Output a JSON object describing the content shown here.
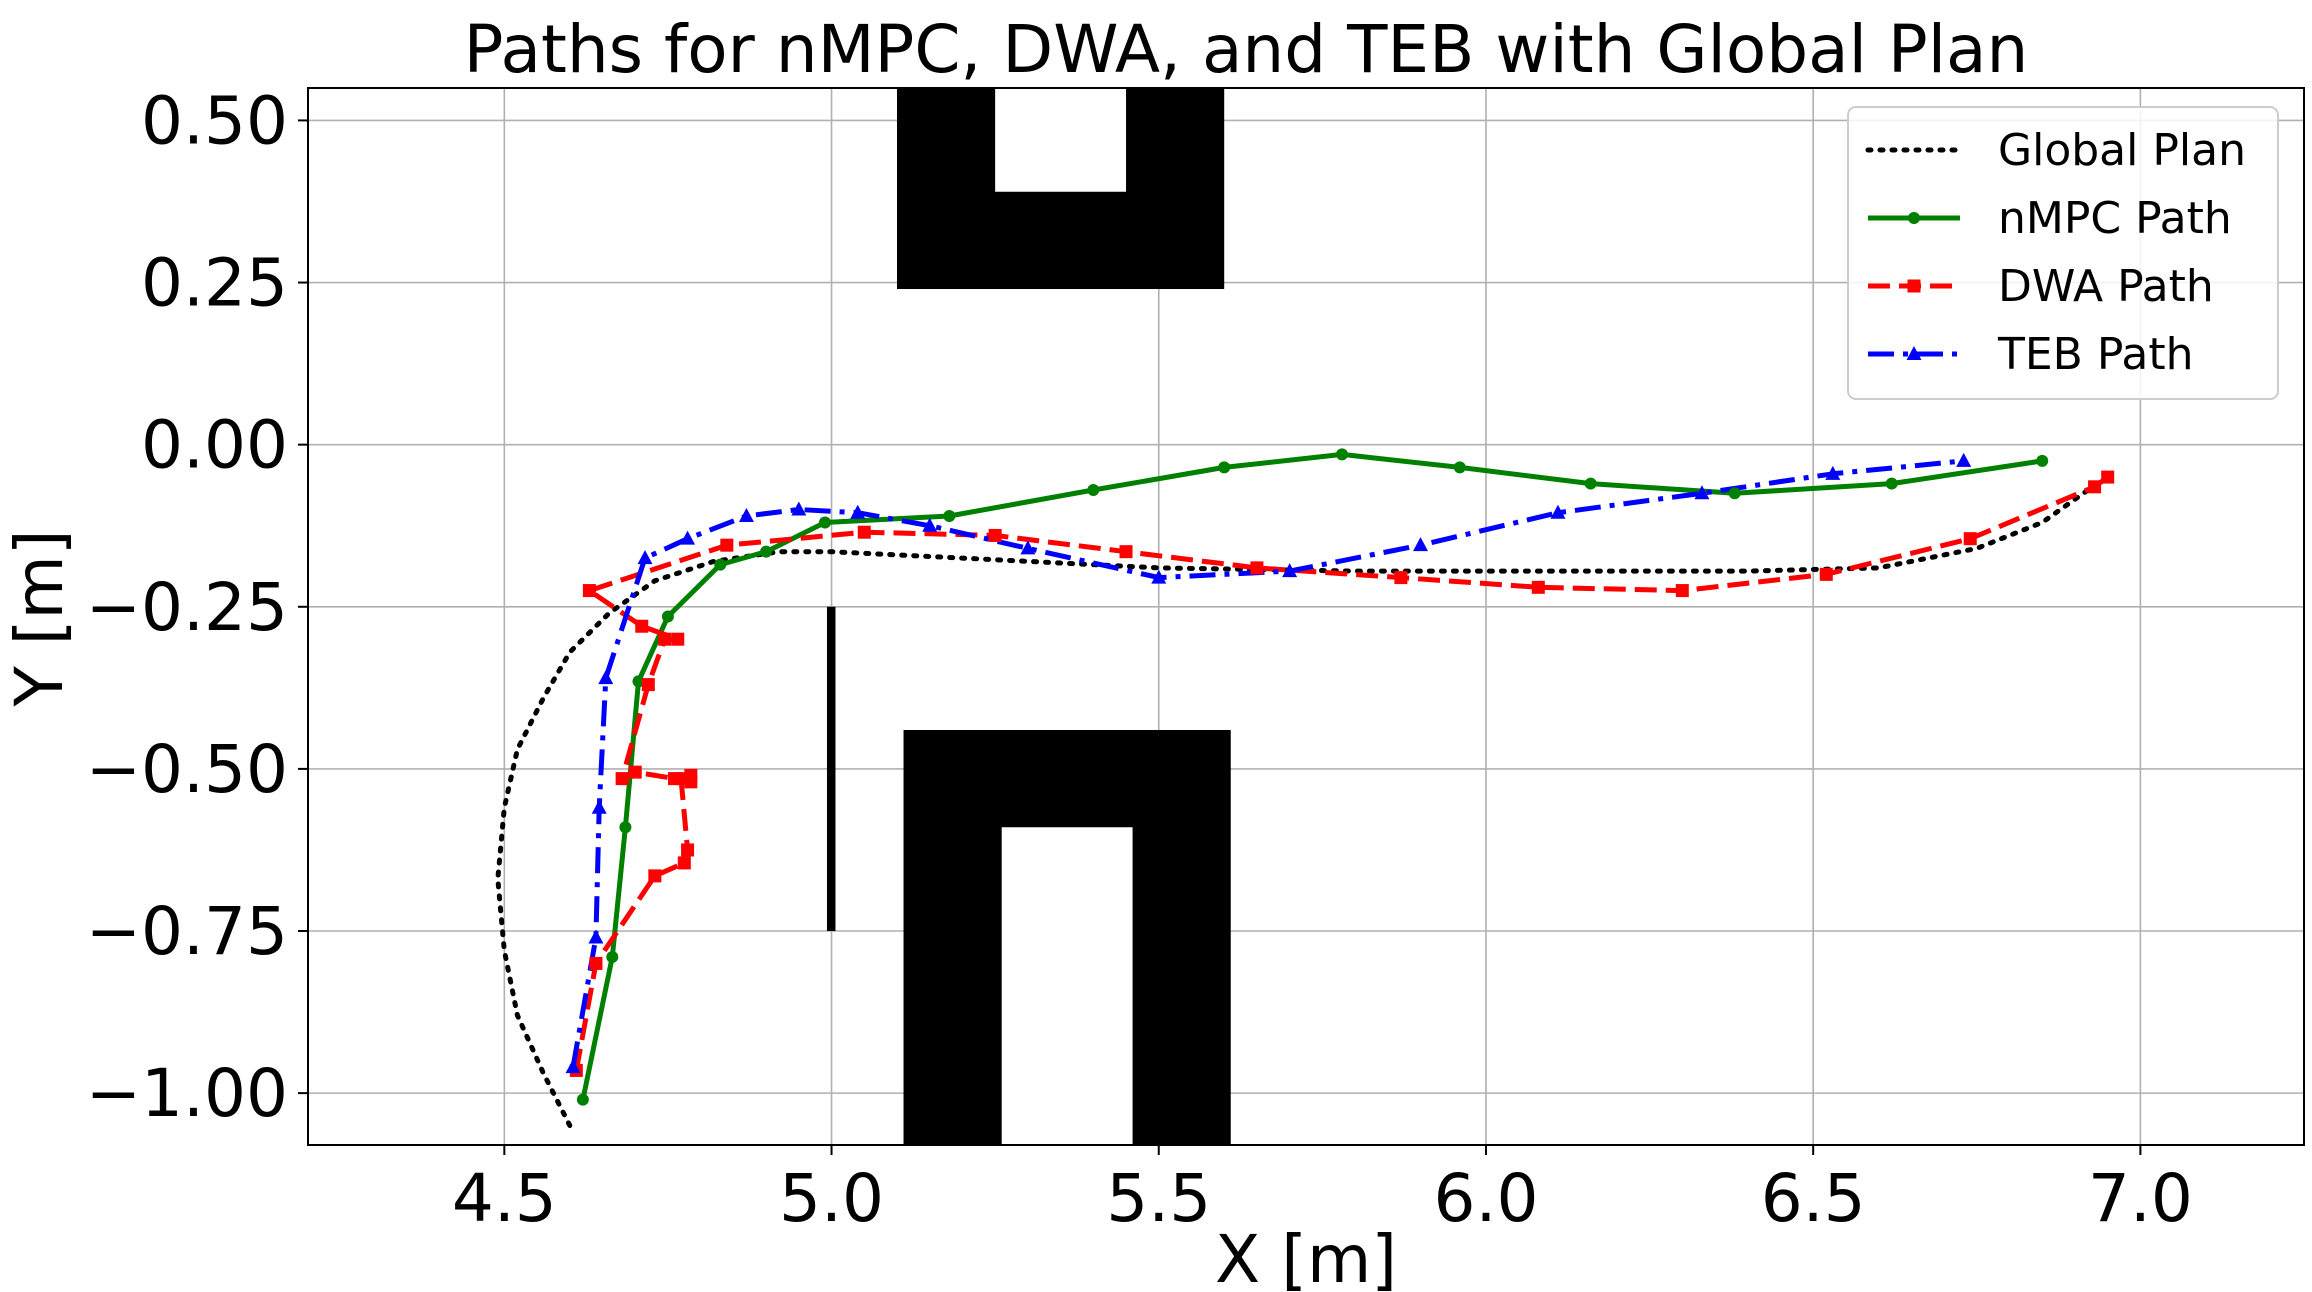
{
  "chart_data": {
    "type": "line",
    "title": "Paths for nMPC, DWA, and TEB with Global Plan",
    "xlabel": "X [m]",
    "ylabel": "Y [m]",
    "xlim": [
      4.2,
      7.25
    ],
    "ylim": [
      -1.08,
      0.55
    ],
    "grid": true,
    "legend_position": "top-right",
    "x_ticks": [
      {
        "value": 4.5,
        "label": "4.5"
      },
      {
        "value": 5.0,
        "label": "5.0"
      },
      {
        "value": 5.5,
        "label": "5.5"
      },
      {
        "value": 6.0,
        "label": "6.0"
      },
      {
        "value": 6.5,
        "label": "6.5"
      },
      {
        "value": 7.0,
        "label": "7.0"
      }
    ],
    "y_ticks": [
      {
        "value": 0.5,
        "label": "0.50"
      },
      {
        "value": 0.25,
        "label": "0.25"
      },
      {
        "value": 0.0,
        "label": "0.00"
      },
      {
        "value": -0.25,
        "label": "−0.25"
      },
      {
        "value": -0.5,
        "label": "−0.50"
      },
      {
        "value": -0.75,
        "label": "−0.75"
      },
      {
        "value": -1.0,
        "label": "−1.00"
      }
    ],
    "obstacles": [
      {
        "x": [
          5.1,
          5.6
        ],
        "y": [
          0.24,
          0.55
        ],
        "hole": {
          "x": [
            5.25,
            5.45
          ],
          "y": [
            0.39,
            0.55
          ]
        }
      },
      {
        "x": [
          5.11,
          5.61
        ],
        "y": [
          -1.08,
          -0.44
        ],
        "hole": {
          "x": [
            5.26,
            5.46
          ],
          "y": [
            -1.08,
            -0.59
          ]
        }
      },
      {
        "x": [
          4.993,
          5.006
        ],
        "y": [
          -0.75,
          -0.25
        ]
      }
    ],
    "series": [
      {
        "name": "Global Plan",
        "color": "#000000",
        "style": "dotted",
        "marker": "none",
        "x": [
          4.6,
          4.56,
          4.52,
          4.5,
          4.49,
          4.5,
          4.52,
          4.56,
          4.6,
          4.66,
          4.73,
          4.82,
          4.92,
          5.0,
          5.2,
          5.5,
          5.8,
          6.1,
          6.4,
          6.6,
          6.75,
          6.85,
          6.92
        ],
        "y": [
          -1.05,
          -0.97,
          -0.88,
          -0.78,
          -0.67,
          -0.56,
          -0.47,
          -0.39,
          -0.32,
          -0.26,
          -0.21,
          -0.18,
          -0.165,
          -0.165,
          -0.175,
          -0.19,
          -0.195,
          -0.195,
          -0.195,
          -0.19,
          -0.16,
          -0.12,
          -0.07
        ]
      },
      {
        "name": "nMPC Path",
        "color": "#008000",
        "style": "solid",
        "marker": "circle",
        "x": [
          4.62,
          4.665,
          4.685,
          4.705,
          4.75,
          4.83,
          4.9,
          4.99,
          5.18,
          5.4,
          5.6,
          5.78,
          5.96,
          6.16,
          6.38,
          6.62,
          6.85
        ],
        "y": [
          -1.01,
          -0.79,
          -0.59,
          -0.365,
          -0.265,
          -0.185,
          -0.165,
          -0.12,
          -0.11,
          -0.07,
          -0.035,
          -0.015,
          -0.035,
          -0.06,
          -0.075,
          -0.06,
          -0.025
        ]
      },
      {
        "name": "DWA Path",
        "color": "#ff0000",
        "style": "dashed",
        "marker": "square",
        "x": [
          4.61,
          4.64,
          4.73,
          4.775,
          4.78,
          4.77,
          4.785,
          4.785,
          4.76,
          4.7,
          4.68,
          4.72,
          4.745,
          4.765,
          4.71,
          4.63,
          4.84,
          5.05,
          5.25,
          5.45,
          5.65,
          5.87,
          6.08,
          6.3,
          6.52,
          6.74,
          6.93,
          6.95
        ],
        "y": [
          -0.965,
          -0.8,
          -0.665,
          -0.645,
          -0.625,
          -0.515,
          -0.52,
          -0.51,
          -0.515,
          -0.505,
          -0.515,
          -0.37,
          -0.3,
          -0.3,
          -0.28,
          -0.225,
          -0.155,
          -0.135,
          -0.14,
          -0.165,
          -0.19,
          -0.205,
          -0.22,
          -0.225,
          -0.2,
          -0.145,
          -0.065,
          -0.05
        ]
      },
      {
        "name": "TEB Path",
        "color": "#0000ff",
        "style": "dashdot",
        "marker": "triangle",
        "x": [
          4.605,
          4.64,
          4.645,
          4.655,
          4.715,
          4.78,
          4.87,
          4.95,
          5.04,
          5.15,
          5.3,
          5.5,
          5.7,
          5.9,
          6.11,
          6.33,
          6.53,
          6.73
        ],
        "y": [
          -0.96,
          -0.76,
          -0.56,
          -0.36,
          -0.175,
          -0.145,
          -0.11,
          -0.1,
          -0.105,
          -0.125,
          -0.16,
          -0.205,
          -0.195,
          -0.155,
          -0.105,
          -0.075,
          -0.045,
          -0.025
        ]
      }
    ]
  }
}
